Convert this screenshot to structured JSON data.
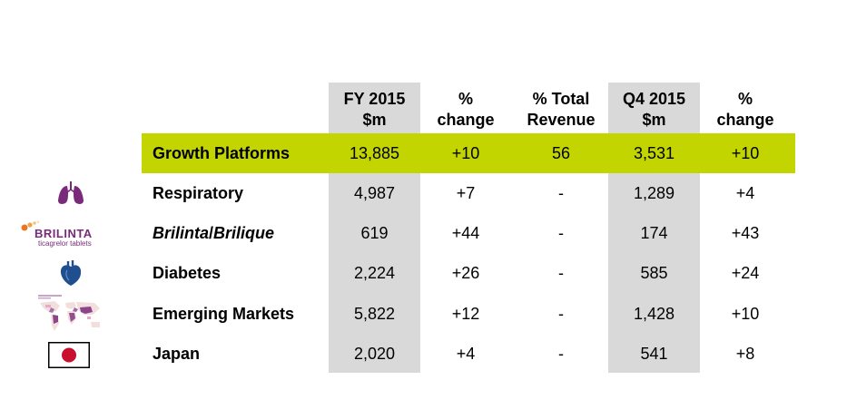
{
  "headers": {
    "fy": [
      "FY 2015",
      "$m"
    ],
    "pct1": [
      "%",
      "change"
    ],
    "total": [
      "% Total",
      "Revenue"
    ],
    "q4": [
      "Q4 2015",
      "$m"
    ],
    "pct2": [
      "%",
      "change"
    ]
  },
  "rows": [
    {
      "label": "Growth Platforms",
      "fy": "13,885",
      "fy_change": "+10",
      "total_revenue": "56",
      "q4": "3,531",
      "q4_change": "+10"
    },
    {
      "label": "Respiratory",
      "fy": "4,987",
      "fy_change": "+7",
      "total_revenue": "-",
      "q4": "1,289",
      "q4_change": "+4",
      "icon": "lungs-icon"
    },
    {
      "label_italic_1": "Brilinta",
      "label_sep": "/",
      "label_italic_2": "Brilique",
      "fy": "619",
      "fy_change": "+44",
      "total_revenue": "-",
      "q4": "174",
      "q4_change": "+43",
      "icon": "brilinta-logo"
    },
    {
      "label": "Diabetes",
      "fy": "2,224",
      "fy_change": "+26",
      "total_revenue": "-",
      "q4": "585",
      "q4_change": "+24",
      "icon": "heart-icon"
    },
    {
      "label": "Emerging Markets",
      "fy": "5,822",
      "fy_change": "+12",
      "total_revenue": "-",
      "q4": "1,428",
      "q4_change": "+10",
      "icon": "world-map-icon"
    },
    {
      "label": "Japan",
      "fy": "2,020",
      "fy_change": "+4",
      "total_revenue": "-",
      "q4": "541",
      "q4_change": "+8",
      "icon": "japan-flag-icon"
    }
  ],
  "brilinta_logo": {
    "brand": "BRILINTA",
    "tagline": "ticagrelor tablets"
  },
  "colors": {
    "highlight": "#c3d500",
    "column_shade": "#d9d9d9",
    "logo_purple": "#7a2a7a",
    "flag_red": "#c8102e",
    "heart_blue": "#1f4f8f"
  }
}
